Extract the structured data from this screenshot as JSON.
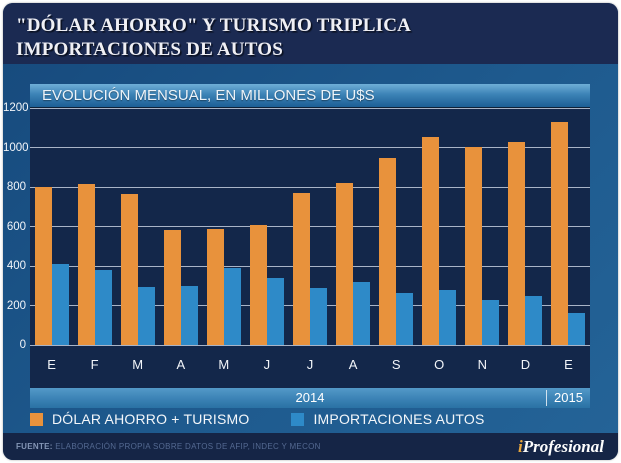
{
  "title": {
    "line1": "\"DÓLAR AHORRO\" Y TURISMO TRIPLICA",
    "line2": "IMPORTACIONES DE AUTOS"
  },
  "chart_header": "EVOLUCIÓN MENSUAL, EN MILLONES DE U$S",
  "chart_data": {
    "type": "bar",
    "title": "EVOLUCIÓN MENSUAL, EN MILLONES DE U$S",
    "categories": [
      "E",
      "F",
      "M",
      "A",
      "M",
      "J",
      "J",
      "A",
      "S",
      "O",
      "N",
      "D",
      "E"
    ],
    "series": [
      {
        "name": "DÓLAR AHORRO +  TURISMO",
        "color": "#E8923C",
        "values": [
          800,
          815,
          765,
          580,
          585,
          610,
          770,
          820,
          945,
          1055,
          1000,
          1030,
          1130
        ]
      },
      {
        "name": "IMPORTACIONES AUTOS",
        "color": "#2E8AC8",
        "values": [
          410,
          380,
          295,
          300,
          390,
          340,
          290,
          320,
          265,
          280,
          230,
          250,
          160
        ]
      }
    ],
    "ylim": [
      0,
      1200
    ],
    "yticks": [
      0,
      200,
      400,
      600,
      800,
      1000,
      1200
    ],
    "x_groups": [
      {
        "label": "2014",
        "span": 12
      },
      {
        "label": "2015",
        "span": 1
      }
    ],
    "grid": true,
    "legend_position": "bottom"
  },
  "years": {
    "y2014": "2014",
    "y2015": "2015"
  },
  "legend": [
    {
      "label": "DÓLAR AHORRO +  TURISMO",
      "color": "#E8923C"
    },
    {
      "label": "IMPORTACIONES AUTOS",
      "color": "#2E8AC8"
    }
  ],
  "footer": {
    "source_label": "FUENTE:",
    "source_text": "ELABORACIÓN PROPIA SOBRE DATOS DE AFIP, INDEC Y MECON",
    "brand_i": "i",
    "brand_rest": "Profesional"
  },
  "colors": {
    "title_bg": "#1B2A52",
    "surround_bg": "#1E5A8E",
    "plot_bg": "#13274A",
    "footer_bg": "#152546",
    "gridline": "#C4CEDD",
    "bar_orange": "#E8923C",
    "bar_blue": "#2E8AC8",
    "brand_accent": "#E8A63C"
  }
}
